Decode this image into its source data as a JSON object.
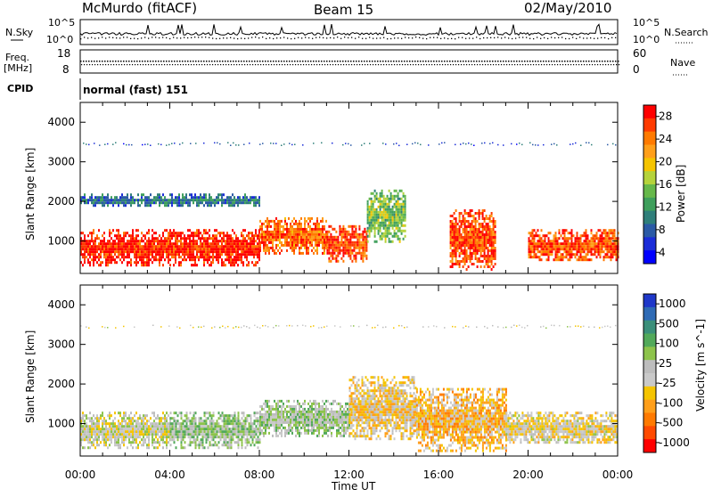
{
  "header": {
    "station": "McMurdo (fitACF)",
    "beam": "Beam 15",
    "date": "02/May/2010"
  },
  "side_labels": {
    "nsky": "N.Sky",
    "nsearch": "N.Search",
    "freq_line1": "Freq.",
    "freq_line2": "[MHz]",
    "nave": "Nave",
    "cpid": "CPID"
  },
  "cpid_text": "normal (fast) 151",
  "nsky_ticks": [
    "10^5",
    "10^0"
  ],
  "nsearch_ticks": [
    "10^5",
    "10^0"
  ],
  "freq_ticks": [
    "18",
    "8"
  ],
  "nave_ticks": [
    "60",
    "0"
  ],
  "range_axis_label": "Slant Range [km]",
  "range_ticks": [
    "4000",
    "3000",
    "2000",
    "1000"
  ],
  "time_axis_label": "Time UT",
  "time_ticks": [
    "00:00",
    "04:00",
    "08:00",
    "12:00",
    "16:00",
    "20:00",
    "00:00"
  ],
  "power_colorbar": {
    "label": "Power [dB]",
    "ticks": [
      "28",
      "24",
      "20",
      "16",
      "12",
      "8",
      "4"
    ],
    "colors": [
      "#ff0000",
      "#ff3a00",
      "#ff7a00",
      "#ff9f1a",
      "#f5c400",
      "#b5d33b",
      "#66b84a",
      "#3f9f5c",
      "#2f7f7a",
      "#2b5aa5",
      "#1b2dd8",
      "#0000ff"
    ]
  },
  "velocity_colorbar": {
    "label": "Velocity [m s^-1]",
    "ticks": [
      "1000",
      "500",
      "100",
      "25",
      "-25",
      "-100",
      "-500",
      "-1000"
    ],
    "colors": [
      "#1f38c9",
      "#2f6bb5",
      "#3b8f7a",
      "#52a95a",
      "#8dc34b",
      "#bdbdbd",
      "#c9c9c9",
      "#f5c400",
      "#ff9f1a",
      "#ff7a00",
      "#ff4a00",
      "#ff0000"
    ]
  },
  "chart_data": [
    {
      "type": "heatmap",
      "title": "McMurdo (fitACF) Beam 15 02/May/2010",
      "quantity": "Power",
      "xlabel": "Time UT",
      "ylabel": "Slant Range [km]",
      "x_ticks": [
        "00:00",
        "04:00",
        "08:00",
        "12:00",
        "16:00",
        "20:00",
        "00:00"
      ],
      "xlim_hours": [
        0,
        24
      ],
      "ylim_km": [
        180,
        4500
      ],
      "colorbar_label": "Power [dB]",
      "colorbar_range": [
        0,
        30
      ],
      "bands": [
        {
          "t_start": 0.0,
          "t_end": 8.0,
          "r_low": 400,
          "r_high": 1300,
          "value": 28
        },
        {
          "t_start": 8.0,
          "t_end": 11.0,
          "r_low": 700,
          "r_high": 1600,
          "value": 24
        },
        {
          "t_start": 11.0,
          "t_end": 12.8,
          "r_low": 500,
          "r_high": 1400,
          "value": 26
        },
        {
          "t_start": 12.8,
          "t_end": 14.5,
          "r_low": 1000,
          "r_high": 2300,
          "value": 14
        },
        {
          "t_start": 16.5,
          "t_end": 18.5,
          "r_low": 300,
          "r_high": 1800,
          "value": 26
        },
        {
          "t_start": 20.0,
          "t_end": 24.0,
          "r_low": 500,
          "r_high": 1300,
          "value": 26
        },
        {
          "t_start": 0.0,
          "t_end": 8.0,
          "r_low": 1900,
          "r_high": 2200,
          "value": 8
        },
        {
          "t_start": 0.0,
          "t_end": 24.0,
          "r_low": 3430,
          "r_high": 3500,
          "value": 6
        }
      ]
    },
    {
      "type": "heatmap",
      "quantity": "Velocity",
      "xlabel": "Time UT",
      "ylabel": "Slant Range [km]",
      "x_ticks": [
        "00:00",
        "04:00",
        "08:00",
        "12:00",
        "16:00",
        "20:00",
        "00:00"
      ],
      "xlim_hours": [
        0,
        24
      ],
      "ylim_km": [
        180,
        4500
      ],
      "colorbar_label": "Velocity [m s^-1]",
      "colorbar_range": [
        -1000,
        1000
      ],
      "bands": [
        {
          "t_start": 0.0,
          "t_end": 4.0,
          "r_low": 400,
          "r_high": 1300,
          "value": 0
        },
        {
          "t_start": 4.0,
          "t_end": 8.0,
          "r_low": 400,
          "r_high": 1300,
          "value": 200
        },
        {
          "t_start": 8.0,
          "t_end": 12.0,
          "r_low": 700,
          "r_high": 1600,
          "value": 150
        },
        {
          "t_start": 12.0,
          "t_end": 15.0,
          "r_low": 600,
          "r_high": 2200,
          "value": -200
        },
        {
          "t_start": 15.0,
          "t_end": 19.0,
          "r_low": 300,
          "r_high": 1900,
          "value": -300
        },
        {
          "t_start": 19.0,
          "t_end": 24.0,
          "r_low": 500,
          "r_high": 1300,
          "value": -100
        },
        {
          "t_start": 0.0,
          "t_end": 24.0,
          "r_low": 3430,
          "r_high": 3500,
          "value": -50
        }
      ]
    }
  ]
}
